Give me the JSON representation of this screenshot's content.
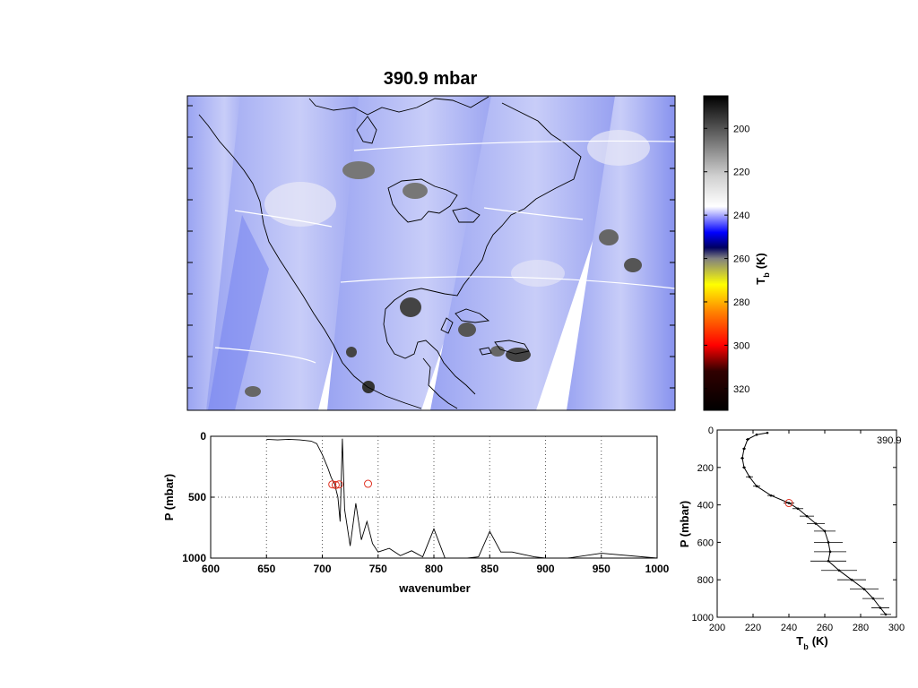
{
  "title": "390.9 mbar",
  "colors": {
    "map_background": "#8a96f0",
    "swath_gap": "#ffffff",
    "coastline": "#000000",
    "marker": "#e03020",
    "profile_line": "#000000"
  },
  "colorbar": {
    "label": "T",
    "label_sub": "b",
    "label_unit": "(K)",
    "ticks": [
      "200",
      "220",
      "240",
      "260",
      "280",
      "300",
      "320"
    ],
    "range": [
      185,
      330
    ],
    "stops": [
      {
        "t": 185,
        "color": "#000000"
      },
      {
        "t": 205,
        "color": "#707070"
      },
      {
        "t": 222,
        "color": "#d0d0d0"
      },
      {
        "t": 236,
        "color": "#ffffff"
      },
      {
        "t": 248,
        "color": "#0000ff"
      },
      {
        "t": 255,
        "color": "#000060"
      },
      {
        "t": 260,
        "color": "#808080"
      },
      {
        "t": 272,
        "color": "#ffff00"
      },
      {
        "t": 285,
        "color": "#ff8000"
      },
      {
        "t": 300,
        "color": "#ff0000"
      },
      {
        "t": 312,
        "color": "#300000"
      },
      {
        "t": 330,
        "color": "#000000"
      }
    ]
  },
  "chart_data": [
    {
      "type": "heatmap",
      "title": "390.9 mbar",
      "description_of_field": "brightness temperature over North America, satellite swaths",
      "grid": false
    },
    {
      "type": "line",
      "xlabel": "wavenumber",
      "ylabel": "P (mbar)",
      "xlim": [
        600,
        1000
      ],
      "ylim": [
        1000,
        0
      ],
      "x_ticks": [
        "600",
        "650",
        "700",
        "750",
        "800",
        "850",
        "900",
        "950",
        "1000"
      ],
      "y_ticks": [
        "0",
        "500",
        "1000"
      ],
      "grid": true,
      "series": [
        {
          "values": [
            [
              650,
              25
            ],
            [
              660,
              30
            ],
            [
              670,
              25
            ],
            [
              680,
              30
            ],
            [
              690,
              40
            ],
            [
              695,
              60
            ],
            [
              700,
              150
            ],
            [
              705,
              260
            ],
            [
              708,
              340
            ],
            [
              711,
              390
            ],
            [
              714,
              500
            ],
            [
              716,
              700
            ],
            [
              718,
              20
            ],
            [
              720,
              600
            ],
            [
              725,
              900
            ],
            [
              730,
              550
            ],
            [
              735,
              850
            ],
            [
              740,
              700
            ],
            [
              745,
              880
            ],
            [
              750,
              950
            ],
            [
              760,
              920
            ],
            [
              770,
              980
            ],
            [
              780,
              940
            ],
            [
              790,
              990
            ],
            [
              800,
              760
            ],
            [
              810,
              1000
            ],
            [
              820,
              1000
            ],
            [
              830,
              1000
            ],
            [
              840,
              990
            ],
            [
              850,
              780
            ],
            [
              860,
              950
            ],
            [
              870,
              950
            ],
            [
              880,
              970
            ],
            [
              890,
              990
            ],
            [
              900,
              1000
            ],
            [
              920,
              1000
            ],
            [
              950,
              960
            ],
            [
              1000,
              1000
            ]
          ]
        }
      ],
      "markers": [
        [
          709,
          395
        ],
        [
          712,
          400
        ],
        [
          715,
          395
        ],
        [
          741,
          390
        ]
      ]
    },
    {
      "type": "line",
      "xlabel": "T",
      "xlabel_sub": "b",
      "xlabel_unit": "(K)",
      "ylabel": "P (mbar)",
      "xlim": [
        200,
        300
      ],
      "ylim": [
        1000,
        0
      ],
      "x_ticks": [
        "200",
        "220",
        "240",
        "260",
        "280",
        "300"
      ],
      "y_ticks": [
        "0",
        "200",
        "400",
        "600",
        "800",
        "1000"
      ],
      "annotation": "390.9",
      "series": [
        {
          "values": [
            [
              228,
              15
            ],
            [
              222,
              25
            ],
            [
              217,
              50
            ],
            [
              215,
              100
            ],
            [
              214,
              150
            ],
            [
              215,
              200
            ],
            [
              218,
              250
            ],
            [
              222,
              300
            ],
            [
              230,
              350
            ],
            [
              240,
              390
            ],
            [
              245,
              420
            ],
            [
              250,
              460
            ],
            [
              255,
              500
            ],
            [
              260,
              540
            ],
            [
              262,
              600
            ],
            [
              263,
              650
            ],
            [
              262,
              700
            ],
            [
              268,
              750
            ],
            [
              275,
              800
            ],
            [
              282,
              850
            ],
            [
              287,
              900
            ],
            [
              291,
              950
            ],
            [
              294,
              985
            ]
          ]
        }
      ],
      "xerr": [
        0,
        0,
        1,
        1,
        1,
        1,
        2,
        2,
        2,
        3,
        3,
        4,
        5,
        6,
        8,
        9,
        10,
        10,
        8,
        8,
        6,
        5,
        3
      ],
      "markers": [
        [
          240,
          390
        ]
      ]
    }
  ]
}
